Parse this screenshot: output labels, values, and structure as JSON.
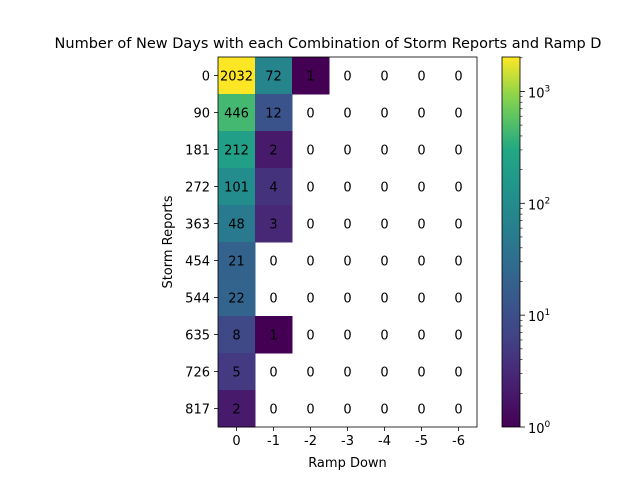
{
  "chart_data": {
    "type": "heatmap",
    "title": "Number of New Days with each Combination of Storm Reports and Ramp D",
    "xlabel": "Ramp Down",
    "ylabel": "Storm Reports",
    "x_categories": [
      "0",
      "-1",
      "-2",
      "-3",
      "-4",
      "-5",
      "-6"
    ],
    "y_categories": [
      "0",
      "90",
      "181",
      "272",
      "363",
      "454",
      "544",
      "635",
      "726",
      "817"
    ],
    "values": [
      [
        2032,
        72,
        1,
        0,
        0,
        0,
        0
      ],
      [
        446,
        12,
        0,
        0,
        0,
        0,
        0
      ],
      [
        212,
        2,
        0,
        0,
        0,
        0,
        0
      ],
      [
        101,
        4,
        0,
        0,
        0,
        0,
        0
      ],
      [
        48,
        3,
        0,
        0,
        0,
        0,
        0
      ],
      [
        21,
        0,
        0,
        0,
        0,
        0,
        0
      ],
      [
        22,
        0,
        0,
        0,
        0,
        0,
        0
      ],
      [
        8,
        1,
        0,
        0,
        0,
        0,
        0
      ],
      [
        5,
        0,
        0,
        0,
        0,
        0,
        0
      ],
      [
        2,
        0,
        0,
        0,
        0,
        0,
        0
      ]
    ],
    "zero_cells": "blank (not colored)",
    "colorbar": {
      "scale": "log",
      "colormap": "viridis",
      "range": [
        1,
        2032
      ],
      "ticks": [
        {
          "base": "10",
          "exp": "0",
          "value": 1
        },
        {
          "base": "10",
          "exp": "1",
          "value": 10
        },
        {
          "base": "10",
          "exp": "2",
          "value": 100
        },
        {
          "base": "10",
          "exp": "3",
          "value": 1000
        }
      ]
    },
    "grid": false
  }
}
